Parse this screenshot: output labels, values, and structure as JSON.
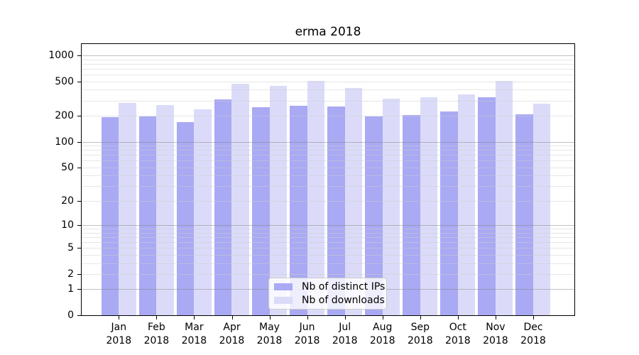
{
  "chart_data": {
    "type": "bar",
    "title": "erma 2018",
    "xlabel": "",
    "ylabel": "",
    "yscale": "log1p",
    "ylim": [
      0,
      1350
    ],
    "yticks": [
      1000,
      500,
      200,
      100,
      50,
      20,
      10,
      5,
      2,
      1,
      0
    ],
    "grid": "on",
    "grid_major": [
      1000,
      100,
      10,
      1
    ],
    "grid_minor": [
      2,
      3,
      4,
      5,
      6,
      7,
      8,
      9,
      20,
      30,
      40,
      50,
      60,
      70,
      80,
      90,
      200,
      300,
      400,
      500,
      600,
      700,
      800,
      900
    ],
    "categories": [
      "Jan",
      "Feb",
      "Mar",
      "Apr",
      "May",
      "Jun",
      "Jul",
      "Aug",
      "Sep",
      "Oct",
      "Nov",
      "Dec"
    ],
    "x_year": "2018",
    "series": [
      {
        "name": "Nb of distinct IPs",
        "color": "#a9a9f4",
        "values": [
          192,
          196,
          170,
          309,
          251,
          262,
          256,
          197,
          205,
          224,
          329,
          207
        ]
      },
      {
        "name": "Nb of downloads",
        "color": "#dbdbf9",
        "values": [
          281,
          264,
          237,
          472,
          443,
          502,
          416,
          315,
          326,
          351,
          505,
          276
        ]
      }
    ],
    "legend": {
      "position": "lower center",
      "entries": [
        "Nb of distinct IPs",
        "Nb of downloads"
      ]
    }
  }
}
